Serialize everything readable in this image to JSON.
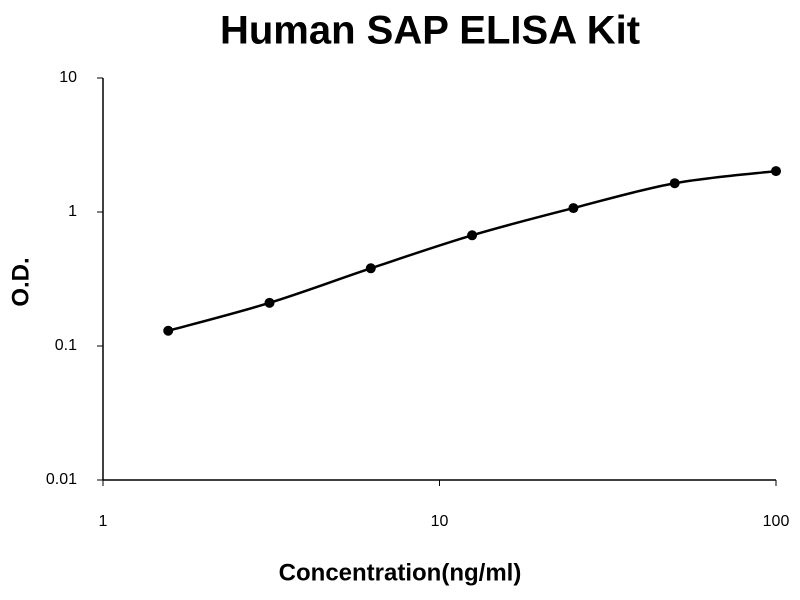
{
  "chart_data": {
    "type": "scatter-line",
    "title": "Human SAP ELISA Kit",
    "x_label": "Concentration(ng/ml)",
    "y_label": "O.D.",
    "x": [
      1.5625,
      3.125,
      6.25,
      12.5,
      25,
      50,
      100
    ],
    "series": [
      {
        "color": "#000000",
        "values": [
          0.13,
          0.21,
          0.38,
          0.67,
          1.07,
          1.64,
          2.02
        ]
      }
    ],
    "xscale": "log",
    "yscale": "log",
    "xlim": [
      1,
      100
    ],
    "ylim": [
      0.01,
      10
    ],
    "xticks": [
      1,
      10,
      100
    ],
    "yticks": [
      0.01,
      0.1,
      1,
      10
    ],
    "grid": false
  }
}
